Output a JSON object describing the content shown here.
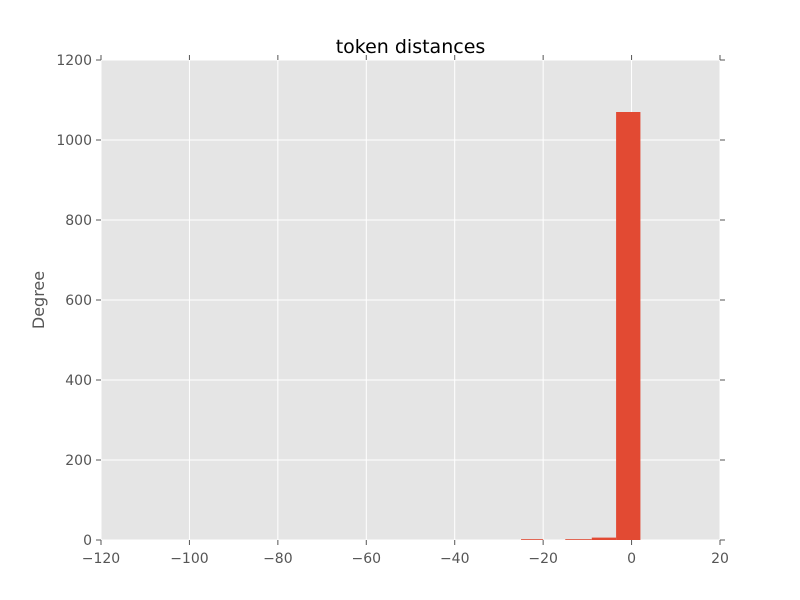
{
  "chart_data": {
    "type": "bar",
    "title": "token distances",
    "xlabel": "",
    "ylabel": "Degree",
    "xlim": [
      -120,
      20
    ],
    "ylim": [
      0,
      1200
    ],
    "xticks": [
      -120,
      -100,
      -80,
      -60,
      -40,
      -20,
      0,
      20
    ],
    "xtick_labels": [
      "−120",
      "−100",
      "−80",
      "−60",
      "−40",
      "−20",
      "0",
      "20"
    ],
    "yticks": [
      0,
      200,
      400,
      600,
      800,
      1000,
      1200
    ],
    "ytick_labels": [
      "0",
      "200",
      "400",
      "600",
      "800",
      "1000",
      "1200"
    ],
    "grid": true,
    "bars": [
      {
        "x0": -25,
        "x1": -20,
        "value": 1
      },
      {
        "x0": -15,
        "x1": -9,
        "value": 2
      },
      {
        "x0": -9,
        "x1": -3.5,
        "value": 6
      },
      {
        "x0": -3.5,
        "x1": 2,
        "value": 1070
      }
    ],
    "colors": {
      "bar": "#E24A33",
      "background": "#E5E5E5",
      "grid": "#FFFFFF",
      "tick_text": "#555555"
    }
  }
}
